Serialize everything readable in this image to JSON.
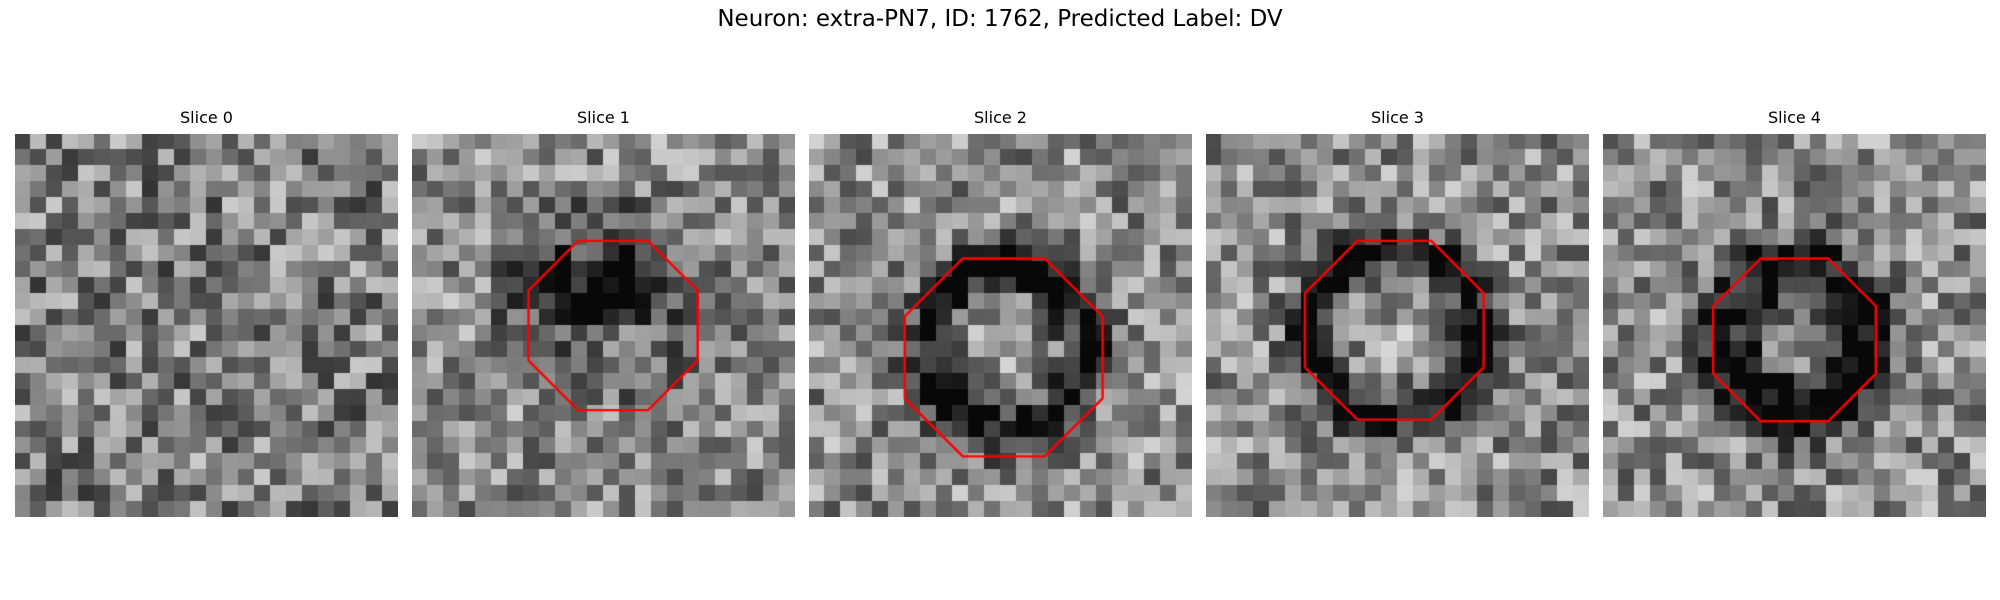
{
  "figure": {
    "title": "Neuron: extra-PN7, ID: 1762, Predicted Label: DV",
    "outline_color": "#ff0000",
    "colormap": "gray",
    "panels": [
      {
        "label": "Slice 0",
        "has_outline": false,
        "dark_blob": null
      },
      {
        "label": "Slice 1",
        "has_outline": true,
        "dark_blob": "crescent-top"
      },
      {
        "label": "Slice 2",
        "has_outline": true,
        "dark_blob": "ring"
      },
      {
        "label": "Slice 3",
        "has_outline": true,
        "dark_blob": "ring"
      },
      {
        "label": "Slice 4",
        "has_outline": true,
        "dark_blob": "ring-bottom"
      }
    ]
  }
}
